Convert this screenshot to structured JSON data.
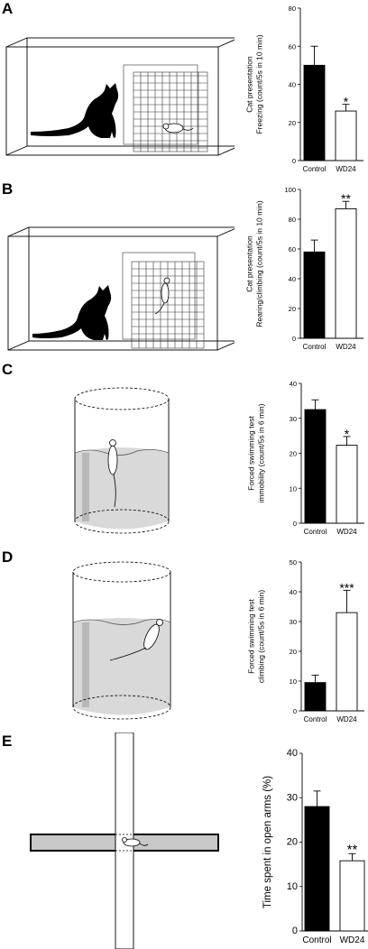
{
  "panels": [
    {
      "label": "A"
    },
    {
      "label": "B"
    },
    {
      "label": "C"
    },
    {
      "label": "D"
    },
    {
      "label": "E"
    }
  ],
  "colors": {
    "control": "#000000",
    "wd24": "#ffffff",
    "tub_water": "#d9d9d9",
    "maze_arm": "#c8c8c8"
  },
  "chart_data": [
    {
      "type": "bar",
      "categories": [
        "Control",
        "WD24"
      ],
      "values": [
        50,
        26
      ],
      "errors": [
        10,
        3.5
      ],
      "ylabel_lines": [
        "Cat presentation",
        "Freezing (count/5s in 10 min)"
      ],
      "ylim": [
        0,
        80
      ],
      "yticks": [
        0,
        20,
        40,
        60,
        80
      ],
      "significance": [
        "",
        "*"
      ]
    },
    {
      "type": "bar",
      "categories": [
        "Control",
        "WD24"
      ],
      "values": [
        58,
        87
      ],
      "errors": [
        8,
        5
      ],
      "ylabel_lines": [
        "Cat presentation",
        "Rearing/climbing (count/5s in 10 min)"
      ],
      "ylim": [
        0,
        100
      ],
      "yticks": [
        0,
        20,
        40,
        60,
        80,
        100
      ],
      "significance": [
        "",
        "**"
      ]
    },
    {
      "type": "bar",
      "categories": [
        "Control",
        "WD24"
      ],
      "values": [
        32.5,
        22.3
      ],
      "errors": [
        2.8,
        2.5
      ],
      "ylabel_lines": [
        "Forced swimming test",
        "immobility (count/5s in 6 min)"
      ],
      "ylim": [
        0,
        40
      ],
      "yticks": [
        0,
        10,
        20,
        30,
        40
      ],
      "significance": [
        "",
        "*"
      ]
    },
    {
      "type": "bar",
      "categories": [
        "Control",
        "WD24"
      ],
      "values": [
        9.5,
        33
      ],
      "errors": [
        2.5,
        7.5
      ],
      "ylabel_lines": [
        "Forced swimming test",
        "climbing (count/5s in 6 min)"
      ],
      "ylim": [
        0,
        50
      ],
      "yticks": [
        0,
        10,
        20,
        30,
        40,
        50
      ],
      "significance": [
        "",
        "***"
      ]
    },
    {
      "type": "bar",
      "categories": [
        "Control",
        "WD24"
      ],
      "values": [
        28,
        15.8
      ],
      "errors": [
        3.5,
        1.6
      ],
      "ylabel_lines": [
        "Time spent in open arms (%)"
      ],
      "ylim": [
        0,
        40
      ],
      "yticks": [
        0,
        10,
        20,
        30,
        40
      ],
      "significance": [
        "",
        "**"
      ]
    }
  ]
}
